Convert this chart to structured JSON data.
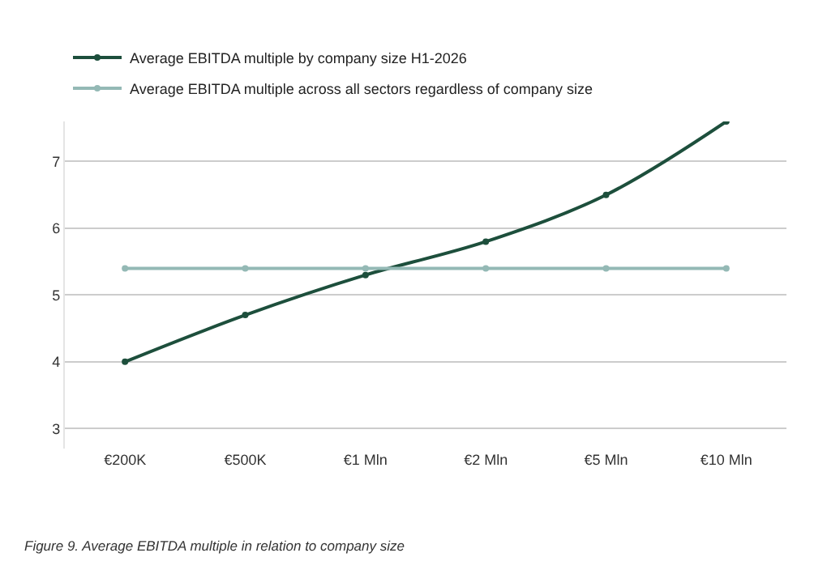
{
  "chart_data": {
    "type": "line",
    "categories": [
      "€200K",
      "€500K",
      "€1 Mln",
      "€2 Mln",
      "€5 Mln",
      "€10 Mln"
    ],
    "series": [
      {
        "name": "Average EBITDA multiple by company size H1-2026",
        "color": "#1d4f3c",
        "values": [
          4.0,
          4.7,
          5.3,
          5.8,
          6.5,
          7.6
        ]
      },
      {
        "name": "Average EBITDA multiple across all sectors regardless of company size",
        "color": "#94b9b5",
        "values": [
          5.4,
          5.4,
          5.4,
          5.4,
          5.4,
          5.4
        ]
      }
    ],
    "ylim": [
      2.7,
      7.6
    ],
    "yticks": [
      3,
      4,
      5,
      6,
      7
    ],
    "grid": "y",
    "legend": "top left",
    "marker": "circle",
    "line_style": "solid",
    "annotations": [
      "Figure 9. Average EBITDA multiple in relation to company size"
    ]
  }
}
